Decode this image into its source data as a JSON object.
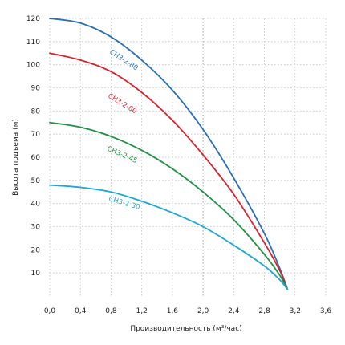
{
  "chart_data": {
    "type": "line",
    "xlabel": "Производительность (м³/час)",
    "ylabel": "Высота подъема (м)",
    "xlim": [
      0,
      3.6
    ],
    "ylim": [
      0,
      120
    ],
    "xticks": [
      "0,0",
      "0,4",
      "0,8",
      "1,2",
      "1,6",
      "2,0",
      "2,4",
      "2,8",
      "3,2",
      "3,6"
    ],
    "yticks": [
      "10",
      "20",
      "30",
      "40",
      "50",
      "60",
      "70",
      "80",
      "90",
      "100",
      "110",
      "120"
    ],
    "grid": true,
    "series": [
      {
        "name": "СН3-2-80",
        "color": "#2a6fb0",
        "x": [
          0,
          0.4,
          0.8,
          1.2,
          1.6,
          2.0,
          2.4,
          2.8,
          3.0,
          3.1
        ],
        "y": [
          120,
          118,
          112,
          102,
          89,
          72,
          51,
          27,
          12,
          3
        ]
      },
      {
        "name": "СН3-2-60",
        "color": "#d9232e",
        "x": [
          0,
          0.4,
          0.8,
          1.2,
          1.6,
          2.0,
          2.4,
          2.8,
          3.0,
          3.1
        ],
        "y": [
          105,
          102,
          97,
          88,
          76,
          61,
          44,
          23,
          11,
          3
        ]
      },
      {
        "name": "СН3-2-45",
        "color": "#1e9144",
        "x": [
          0,
          0.4,
          0.8,
          1.2,
          1.6,
          2.0,
          2.4,
          2.8,
          3.0,
          3.1
        ],
        "y": [
          75,
          73,
          69,
          63,
          55,
          45,
          33,
          18,
          9,
          3
        ]
      },
      {
        "name": "СН3-2-30",
        "color": "#1ea8d6",
        "x": [
          0,
          0.4,
          0.8,
          1.2,
          1.6,
          2.0,
          2.4,
          2.8,
          3.0,
          3.1
        ],
        "y": [
          48,
          47,
          45,
          41,
          36,
          30,
          22,
          13,
          7,
          3
        ]
      }
    ]
  }
}
